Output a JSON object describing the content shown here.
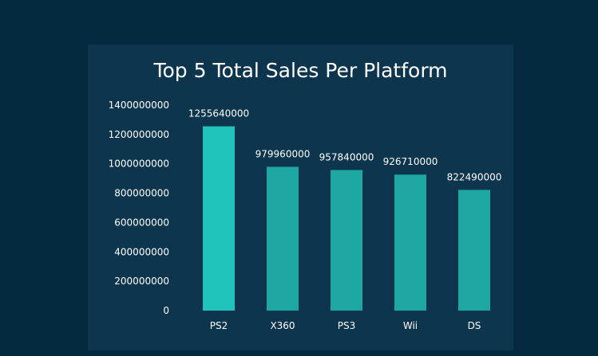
{
  "chart_data": {
    "type": "bar",
    "title": "Top 5 Total Sales Per Platform",
    "xlabel": "",
    "ylabel": "",
    "categories": [
      "PS2",
      "X360",
      "PS3",
      "Wii",
      "DS"
    ],
    "values": [
      1255640000,
      979960000,
      957840000,
      926710000,
      822490000
    ],
    "data_labels": [
      "1255640000",
      "979960000",
      "957840000",
      "926710000",
      "822490000"
    ],
    "y_ticks": [
      "0",
      "200000000",
      "400000000",
      "600000000",
      "800000000",
      "1000000000",
      "1200000000",
      "1400000000"
    ],
    "ylim": [
      0,
      1400000000
    ],
    "grid": false,
    "legend": "none",
    "colors": {
      "page_background": "#052a40",
      "card_background": "#0d364e",
      "highlight_bar": "#1fc4ba",
      "bar": "#1ea6a2",
      "text": "#ffffff"
    }
  }
}
